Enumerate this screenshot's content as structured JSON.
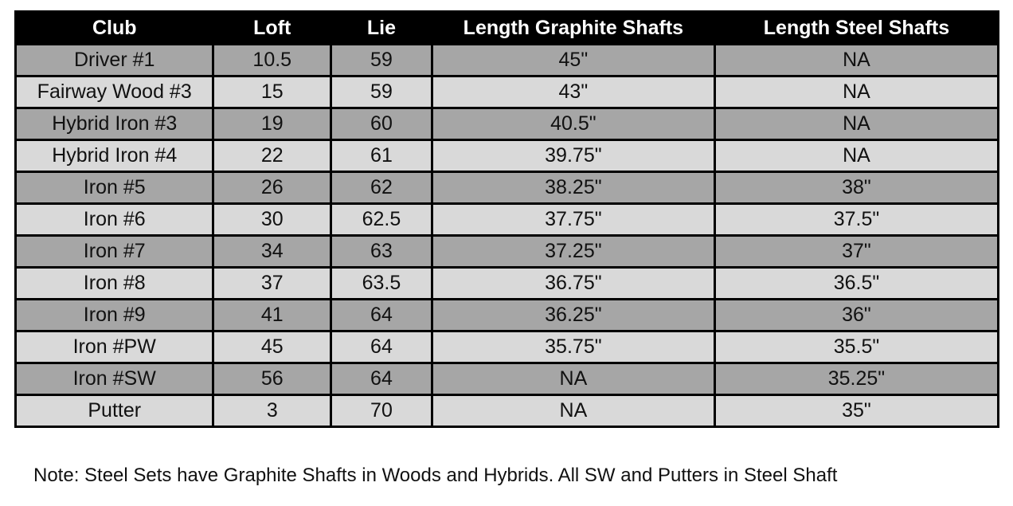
{
  "table": {
    "headers": [
      "Club",
      "Loft",
      "Lie",
      "Length Graphite Shafts",
      "Length Steel Shafts"
    ],
    "rows": [
      [
        "Driver #1",
        "10.5",
        "59",
        "45\"",
        "NA"
      ],
      [
        "Fairway Wood #3",
        "15",
        "59",
        "43\"",
        "NA"
      ],
      [
        "Hybrid Iron #3",
        "19",
        "60",
        "40.5\"",
        "NA"
      ],
      [
        "Hybrid Iron #4",
        "22",
        "61",
        "39.75\"",
        "NA"
      ],
      [
        "Iron #5",
        "26",
        "62",
        "38.25\"",
        "38\""
      ],
      [
        "Iron #6",
        "30",
        "62.5",
        "37.75\"",
        "37.5\""
      ],
      [
        "Iron #7",
        "34",
        "63",
        "37.25\"",
        "37\""
      ],
      [
        "Iron #8",
        "37",
        "63.5",
        "36.75\"",
        "36.5\""
      ],
      [
        "Iron #9",
        "41",
        "64",
        "36.25\"",
        "36\""
      ],
      [
        "Iron #PW",
        "45",
        "64",
        "35.75\"",
        "35.5\""
      ],
      [
        "Iron #SW",
        "56",
        "64",
        "NA",
        "35.25\""
      ],
      [
        "Putter",
        "3",
        "70",
        "NA",
        "35\""
      ]
    ],
    "colors": {
      "header": "#000000",
      "row_dark": "#a6a6a6",
      "row_light": "#d9d9d9"
    }
  },
  "note": "Note: Steel Sets have Graphite Shafts in Woods and Hybrids. All SW and Putters in Steel Shaft"
}
